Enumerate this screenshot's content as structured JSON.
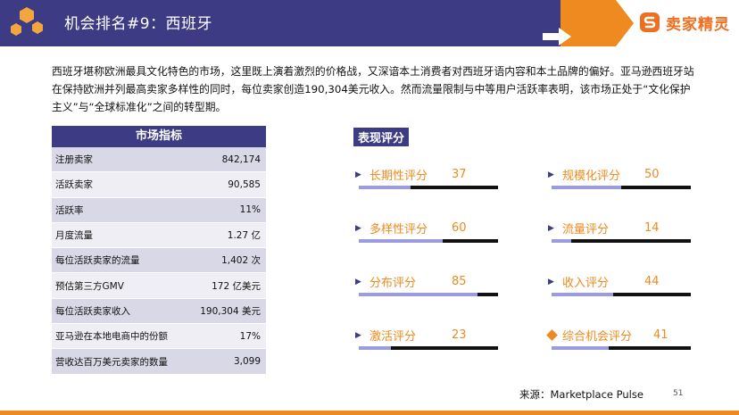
{
  "header": {
    "title": "机会排名#9：西班牙",
    "brand": "卖家精灵",
    "colors": {
      "band": "#3c3b84",
      "accent": "#ee8a1f"
    }
  },
  "intro": "西班牙堪称欧洲最具文化特色的市场，这里既上演着激烈的价格战，又深谙本土消费者对西班牙语内容和本土品牌的偏好。亚马逊西班牙站在保持欧洲并列最高卖家多样性的同时，每位卖家创造190,304美元收入。然而流量限制与中等用户活跃率表明，该市场正处于“文化保护主义”与“全球标准化”之间的转型期。",
  "metrics": {
    "title": "市场指标",
    "rows": [
      {
        "label": "注册卖家",
        "value": "842,174"
      },
      {
        "label": "活跃卖家",
        "value": "90,585"
      },
      {
        "label": "活跃率",
        "value": "11%"
      },
      {
        "label": "月度流量",
        "value": "1.27 亿"
      },
      {
        "label": "每位活跃卖家的流量",
        "value": "1,402 次"
      },
      {
        "label": "预估第三方GMV",
        "value": "172 亿美元"
      },
      {
        "label": "每位活跃卖家收入",
        "value": "190,304 美元"
      },
      {
        "label": "亚马逊在本地电商中的份额",
        "value": "17%"
      },
      {
        "label": "营收达百万美元卖家的数量",
        "value": "3,099"
      }
    ]
  },
  "scores": {
    "title": "表现评分",
    "items": [
      {
        "label": "长期性评分",
        "value": 37,
        "marker": "triangle"
      },
      {
        "label": "规模化评分",
        "value": 50,
        "marker": "triangle"
      },
      {
        "label": "多样性评分",
        "value": 60,
        "marker": "triangle"
      },
      {
        "label": "流量评分",
        "value": 14,
        "marker": "triangle"
      },
      {
        "label": "分布评分",
        "value": 85,
        "marker": "triangle"
      },
      {
        "label": "收入评分",
        "value": 44,
        "marker": "triangle"
      },
      {
        "label": "激活评分",
        "value": 23,
        "marker": "triangle"
      },
      {
        "label": "综合机会评分",
        "value": 41,
        "marker": "diamond"
      }
    ]
  },
  "footer": {
    "source": "来源：Marketplace Pulse",
    "page": "51"
  }
}
